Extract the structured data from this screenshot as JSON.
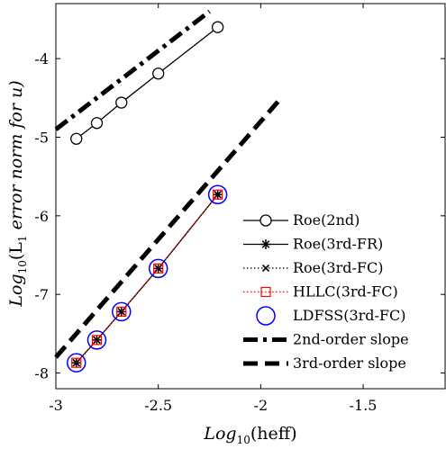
{
  "chart_data": {
    "type": "line",
    "xlabel_main": "Log",
    "xlabel_sub": "10",
    "xlabel_rest": "(heff)",
    "ylabel_main": "Log",
    "ylabel_sub": "10",
    "ylabel_rest": "(L",
    "ylabel_sub2": "1",
    "ylabel_tail": " error norm for u)",
    "xlim": [
      -3,
      -1.1
    ],
    "ylim": [
      -8.2,
      -3.3
    ],
    "xticks": [
      -3,
      -2.5,
      -2,
      -1.5
    ],
    "xtick_labels": [
      "-3",
      "-2.5",
      "-2",
      "-1.5"
    ],
    "yticks": [
      -8,
      -7,
      -6,
      -5,
      -4
    ],
    "ytick_labels": [
      "-8",
      "-7",
      "-6",
      "-5",
      "-4"
    ],
    "legend_position": "right",
    "series": [
      {
        "name": "Roe(2nd)",
        "style": "solid",
        "color": "#000000",
        "marker": "circle",
        "x": [
          -2.9,
          -2.8,
          -2.68,
          -2.5,
          -2.21
        ],
        "y": [
          -5.02,
          -4.82,
          -4.56,
          -4.19,
          -3.6
        ]
      },
      {
        "name": "Roe(3rd-FR)",
        "style": "solid",
        "color": "#000000",
        "marker": "asterisk",
        "x": [
          -2.9,
          -2.8,
          -2.68,
          -2.5,
          -2.21
        ],
        "y": [
          -7.87,
          -7.58,
          -7.22,
          -6.67,
          -5.73
        ]
      },
      {
        "name": "Roe(3rd-FC)",
        "style": "dotted",
        "color": "#000000",
        "marker": "x",
        "x": [
          -2.9,
          -2.8,
          -2.68,
          -2.5,
          -2.21
        ],
        "y": [
          -7.87,
          -7.58,
          -7.22,
          -6.67,
          -5.73
        ]
      },
      {
        "name": "HLLC(3rd-FC)",
        "style": "dotted",
        "color": "#ff0000",
        "marker": "square",
        "x": [
          -2.9,
          -2.8,
          -2.68,
          -2.5,
          -2.21
        ],
        "y": [
          -7.87,
          -7.58,
          -7.22,
          -6.67,
          -5.73
        ]
      },
      {
        "name": "LDFSS(3rd-FC)",
        "style": "none",
        "color": "#0000ff",
        "marker": "big-circle",
        "x": [
          -2.9,
          -2.8,
          -2.68,
          -2.5,
          -2.21
        ],
        "y": [
          -7.87,
          -7.58,
          -7.22,
          -6.67,
          -5.73
        ]
      },
      {
        "name": "2nd-order slope",
        "style": "dashdot",
        "color": "#000000",
        "marker": "none",
        "x": [
          -3.0,
          -2.25
        ],
        "y": [
          -4.9,
          -3.4
        ]
      },
      {
        "name": "3rd-order slope",
        "style": "dashed",
        "color": "#000000",
        "marker": "none",
        "x": [
          -3.0,
          -1.9
        ],
        "y": [
          -7.8,
          -4.5
        ]
      }
    ]
  }
}
